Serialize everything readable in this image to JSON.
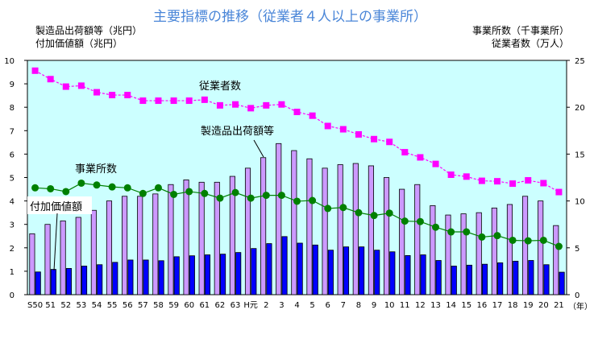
{
  "chart_data": {
    "type": "bar",
    "title": "主要指標の推移（従業者４人以上の事業所）",
    "title_color": "#4a86d8",
    "left_axis": {
      "labels": [
        "製造品出荷額等（兆円）",
        "付加価値額（兆円）"
      ],
      "range": [
        0,
        10
      ],
      "ticks": [
        0,
        1,
        2,
        3,
        4,
        5,
        6,
        7,
        8,
        9,
        10
      ]
    },
    "right_axis": {
      "labels": [
        "事業所数（千事業所）",
        "従業者数（万人）"
      ],
      "range": [
        0,
        25
      ],
      "ticks": [
        0,
        5,
        10,
        15,
        20,
        25
      ]
    },
    "x_unit": "（年）",
    "plot_background": "#ccffff",
    "categories": [
      "S50",
      "51",
      "52",
      "53",
      "54",
      "55",
      "56",
      "57",
      "58",
      "59",
      "60",
      "61",
      "62",
      "63",
      "H元",
      "2",
      "3",
      "4",
      "5",
      "6",
      "7",
      "8",
      "9",
      "10",
      "11",
      "12",
      "13",
      "14",
      "15",
      "16",
      "17",
      "18",
      "19",
      "20",
      "21"
    ],
    "series": [
      {
        "name": "製造品出荷額等",
        "type": "bar",
        "axis": "left",
        "color": "#cc99ff",
        "values": [
          2.6,
          3.0,
          3.15,
          3.3,
          3.6,
          4.0,
          4.2,
          4.2,
          4.3,
          4.7,
          4.9,
          4.8,
          4.8,
          5.05,
          5.4,
          5.85,
          6.45,
          6.15,
          5.8,
          5.4,
          5.55,
          5.6,
          5.5,
          5.0,
          4.5,
          4.7,
          3.8,
          3.4,
          3.45,
          3.5,
          3.7,
          3.85,
          4.2,
          4.0,
          2.95
        ]
      },
      {
        "name": "付加価値額",
        "type": "bar",
        "axis": "left",
        "color": "#0000ff",
        "values": [
          0.97,
          1.08,
          1.12,
          1.22,
          1.28,
          1.38,
          1.48,
          1.48,
          1.45,
          1.62,
          1.66,
          1.7,
          1.73,
          1.8,
          1.97,
          2.18,
          2.48,
          2.2,
          2.12,
          1.9,
          2.04,
          2.04,
          1.9,
          1.83,
          1.67,
          1.7,
          1.46,
          1.22,
          1.26,
          1.3,
          1.36,
          1.43,
          1.46,
          1.28,
          0.96
        ]
      },
      {
        "name": "従業者数",
        "type": "line",
        "axis": "right",
        "color": "#ff00ff",
        "marker": "square",
        "values": [
          23.9,
          23.0,
          22.2,
          22.3,
          21.6,
          21.3,
          21.3,
          20.7,
          20.7,
          20.7,
          20.7,
          20.8,
          20.2,
          20.3,
          19.9,
          20.2,
          20.3,
          19.5,
          19.1,
          18.0,
          17.65,
          17.1,
          16.6,
          16.3,
          15.2,
          14.65,
          13.95,
          12.8,
          12.6,
          12.15,
          12.1,
          11.85,
          12.2,
          11.9,
          10.95
        ]
      },
      {
        "name": "事業所数",
        "type": "line",
        "axis": "right",
        "color": "#008000",
        "marker": "circle",
        "values": [
          11.4,
          11.3,
          11.0,
          11.9,
          11.7,
          11.5,
          11.4,
          10.8,
          11.4,
          10.7,
          11.0,
          10.8,
          10.3,
          10.9,
          10.3,
          10.6,
          10.6,
          9.97,
          10.05,
          9.2,
          9.3,
          8.75,
          8.45,
          8.7,
          7.85,
          7.8,
          7.2,
          6.7,
          6.7,
          6.15,
          6.3,
          5.8,
          5.75,
          5.8,
          5.15
        ]
      }
    ],
    "grid": false,
    "legend": "inline annotations"
  }
}
